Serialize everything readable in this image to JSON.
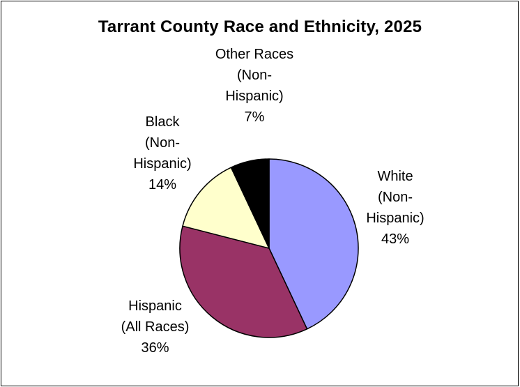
{
  "chart_data": {
    "type": "pie",
    "title": "Tarrant County Race and Ethnicity, 2025",
    "slices": [
      {
        "label_lines": [
          "White",
          "(Non-",
          "Hispanic)"
        ],
        "value_label": "43%",
        "value": 43,
        "color": "#9999ff"
      },
      {
        "label_lines": [
          "Hispanic",
          "(All Races)"
        ],
        "value_label": "36%",
        "value": 36,
        "color": "#993366"
      },
      {
        "label_lines": [
          "Black",
          "(Non-",
          "Hispanic)"
        ],
        "value_label": "14%",
        "value": 14,
        "color": "#ffffcc"
      },
      {
        "label_lines": [
          "Other Races",
          "(Non-",
          "Hispanic)"
        ],
        "value_label": "7%",
        "value": 7,
        "color": "#000000"
      }
    ]
  }
}
